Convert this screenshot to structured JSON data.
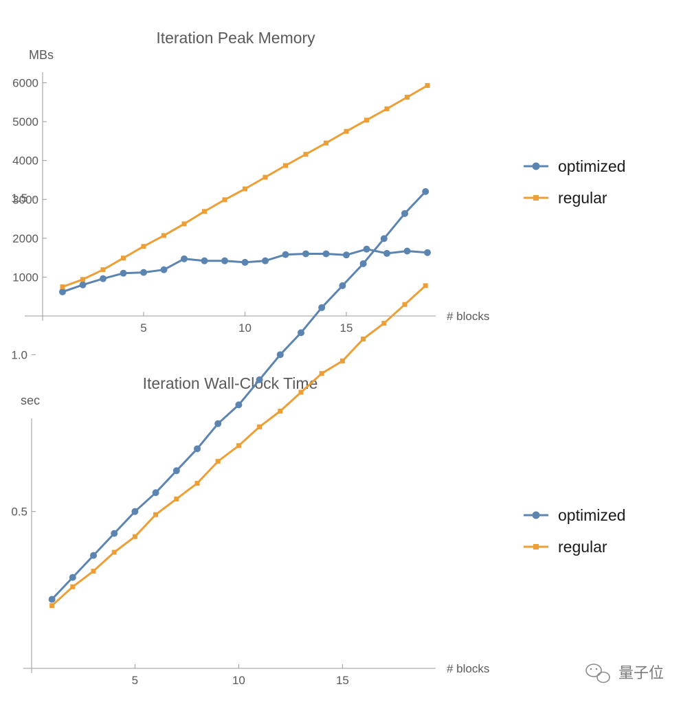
{
  "chart_data": [
    {
      "type": "line",
      "title": "Iteration Peak Memory",
      "xlabel": "# blocks",
      "ylabel": "MBs",
      "xlim": [
        0,
        19
      ],
      "ylim": [
        0,
        6200
      ],
      "x_ticks": [
        5,
        10,
        15
      ],
      "y_ticks": [
        1000,
        2000,
        3000,
        4000,
        5000,
        6000
      ],
      "x": [
        1,
        2,
        3,
        4,
        5,
        6,
        7,
        8,
        9,
        10,
        11,
        12,
        13,
        14,
        15,
        16,
        17,
        18,
        19
      ],
      "legend_position": "right",
      "series": [
        {
          "name": "optimized",
          "color": "#5b84b1",
          "marker": "circle",
          "values": [
            620,
            800,
            960,
            1100,
            1120,
            1190,
            1470,
            1420,
            1420,
            1380,
            1420,
            1580,
            1600,
            1600,
            1570,
            1720,
            1610,
            1670,
            1630
          ]
        },
        {
          "name": "regular",
          "color": "#eb9f36",
          "marker": "square",
          "values": [
            750,
            940,
            1190,
            1490,
            1790,
            2070,
            2370,
            2690,
            2990,
            3270,
            3570,
            3870,
            4160,
            4450,
            4750,
            5040,
            5330,
            5630,
            5930
          ]
        }
      ]
    },
    {
      "type": "line",
      "title": "Iteration Wall-Clock Time",
      "xlabel": "# blocks",
      "ylabel": "sec",
      "xlim": [
        0,
        19
      ],
      "ylim": [
        0,
        1.6
      ],
      "x_ticks": [
        5,
        10,
        15
      ],
      "y_ticks": [
        0.5,
        1.0,
        1.5
      ],
      "y_tick_labels": [
        "0.5",
        "1.0",
        "1.5"
      ],
      "x": [
        1,
        2,
        3,
        4,
        5,
        6,
        7,
        8,
        9,
        10,
        11,
        12,
        13,
        14,
        15,
        16,
        17,
        18,
        19
      ],
      "legend_position": "right",
      "series": [
        {
          "name": "optimized",
          "color": "#5b84b1",
          "marker": "circle",
          "values": [
            0.22,
            0.29,
            0.36,
            0.43,
            0.5,
            0.56,
            0.63,
            0.7,
            0.78,
            0.84,
            0.92,
            1.0,
            1.07,
            1.15,
            1.22,
            1.29,
            1.37,
            1.45,
            1.52
          ]
        },
        {
          "name": "regular",
          "color": "#eb9f36",
          "marker": "square",
          "values": [
            0.2,
            0.26,
            0.31,
            0.37,
            0.42,
            0.49,
            0.54,
            0.59,
            0.66,
            0.71,
            0.77,
            0.82,
            0.88,
            0.94,
            0.98,
            1.05,
            1.1,
            1.16,
            1.22
          ]
        }
      ]
    }
  ],
  "watermark": {
    "text": "量子位",
    "icon": "wechat-icon"
  }
}
